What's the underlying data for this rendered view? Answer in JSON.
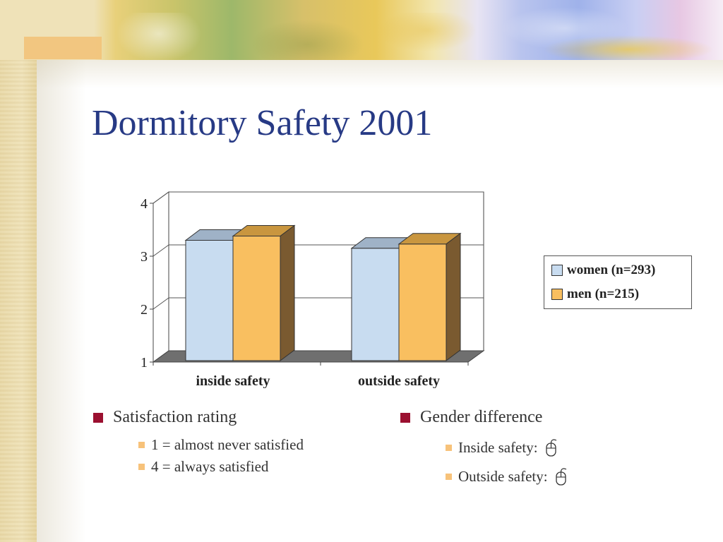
{
  "slide": {
    "title": "Dormitory Safety 2001"
  },
  "colors": {
    "title": "#273a85",
    "women": "#c8dcf0",
    "men": "#f9bf60",
    "bullet_level1": "#9b1030",
    "bullet_level2": "#f7c27a"
  },
  "chart_data": {
    "type": "bar",
    "style": "3d-clustered-column",
    "categories": [
      "inside safety",
      "outside safety"
    ],
    "series": [
      {
        "name": "women (n=293)",
        "values": [
          3.3,
          3.15
        ]
      },
      {
        "name": "men (n=215)",
        "values": [
          3.38,
          3.23
        ]
      }
    ],
    "yticks": [
      "1",
      "2",
      "3",
      "4"
    ],
    "ylim": [
      1,
      4
    ],
    "grid": true,
    "legend_position": "right"
  },
  "bullets_left": {
    "heading": "Satisfaction rating",
    "items": [
      "1 = almost never satisfied",
      "4 = always satisfied"
    ]
  },
  "bullets_right": {
    "heading": "Gender difference",
    "items": [
      "Inside safety:",
      "Outside safety:"
    ],
    "item_icon": "mouse-icon"
  }
}
